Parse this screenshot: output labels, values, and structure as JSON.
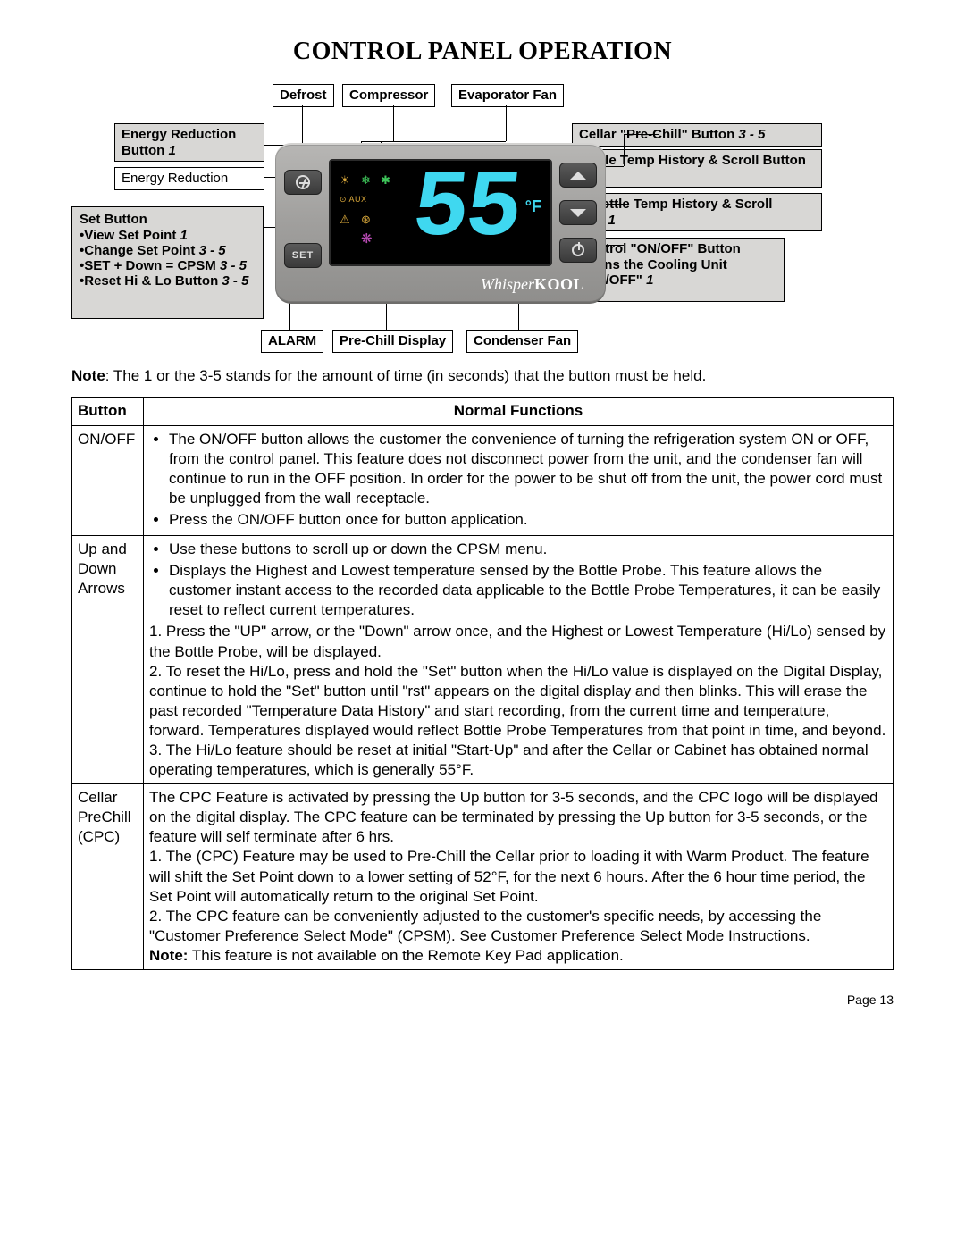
{
  "title": "CONTROL PANEL OPERATION",
  "page_number": "Page 13",
  "colors": {
    "digit": "#3fd8f0",
    "device_body_top": "#b7b6b4",
    "device_body_bot": "#8f8e8c",
    "label_gray": "#d8d7d5",
    "text": "#000000",
    "bg": "#ffffff"
  },
  "device": {
    "display_value": "55",
    "unit": "°F",
    "brand_prefix": "Whisper",
    "brand_suffix": "KOOL",
    "button_set_label": "SET",
    "icons": {
      "defrost": "☀",
      "compressor": "❄",
      "evap_fan": "✱",
      "aux": "⊙ AUX",
      "alarm": "⚠",
      "prechill": "⊛",
      "cond_fan": "❋"
    }
  },
  "labels": {
    "defrost": "Defrost",
    "compressor": "Compressor",
    "evaporator_fan": "Evaporator Fan",
    "energy_reduction_button_title": "Energy Reduction Button",
    "energy_reduction_button_time": "1",
    "energy_reduction": "Energy Reduction",
    "set_button_title": "Set Button",
    "set_items": [
      "•View Set Point  ",
      "•Change Set Point  ",
      "•SET + Down = CPSM  ",
      "•Reset Hi & Lo Button  "
    ],
    "set_times": [
      "1",
      "3 - 5",
      "3 - 5",
      "3 - 5"
    ],
    "alarm": "ALARM",
    "prechill_display": "Pre-Chill Display",
    "condenser_fan": "Condenser Fan",
    "cellar_prechill_title": "Cellar \"Pre-Chill\" Button",
    "cellar_prechill_time": "3 - 5",
    "hi_bottle_title": "Hi Bottle Temp History & Scroll Button",
    "hi_bottle_time": "1",
    "lo_bottle_title": "Low Bottle Temp History & Scroll Button",
    "lo_bottle_time": "1",
    "onoff_title": "Control \"ON/OFF\" Button",
    "onoff_sub": "•Turns the Cooling Unit \"ON/OFF\"",
    "onoff_time": "1"
  },
  "note_prefix": "Note",
  "note_text": ": The 1 or the 3-5 stands for the amount of time (in seconds) that the button must be held.",
  "table": {
    "header_button": "Button",
    "header_functions": "Normal Functions",
    "rows": [
      {
        "button": "ON/OFF",
        "html": "<ul><li>The ON/OFF button allows the customer the convenience of turning the refrigeration system ON or OFF, from the control panel.  This feature does not disconnect power from the unit, and the condenser fan will continue to run in the OFF position.  In order for the power to be shut off from the unit, the power cord must be unplugged from the wall receptacle.</li><li>Press the ON/OFF button once for button application.</li></ul>"
      },
      {
        "button": "Up and Down Arrows",
        "html": "<ul><li>Use these buttons to scroll up or down the CPSM menu.</li><li>Displays the Highest and Lowest temperature sensed by the Bottle Probe.  This feature allows the customer instant access to the recorded data applicable to the Bottle Probe Temperatures, it can be easily reset to reflect current temperatures.</li></ul>1.  Press the \"UP\" arrow, or the \"Down\" arrow once, and the Highest or Lowest Temperature (Hi/Lo) sensed by the Bottle Probe, will be displayed.<br>2.  To reset the Hi/Lo, press and hold the \"Set\" button when the Hi/Lo value is displayed on the Digital Display, continue to hold the \"Set\" button until \"rst\" appears on the digital display and then blinks.  This will erase the past recorded \"Temperature Data History\" and start recording, from the current time and temperature, forward.  Temperatures displayed would reflect Bottle Probe Temperatures from that point in time, and beyond.<br>3.  The Hi/Lo feature should be reset at initial \"Start-Up\" and after the Cellar or Cabinet has obtained normal operating temperatures, which is generally 55°F."
      },
      {
        "button": "Cellar PreChill (CPC)",
        "html": "The CPC Feature is activated by pressing the Up button for 3-5 seconds, and the CPC logo will be displayed on the digital display. The CPC feature can be terminated by pressing the Up button for 3-5 seconds, or the feature will self terminate after 6 hrs.<br>1.  The (CPC) Feature may be used to Pre-Chill the Cellar prior to loading it with Warm Product. The feature will shift the Set Point down to a lower setting of 52°F, for the next 6 hours.  After the 6 hour time period, the Set Point will automatically return to the original Set Point.<br>2.  The CPC feature can be conveniently adjusted to the customer's specific needs, by accessing the \"Customer Preference Select Mode\" (CPSM).  See Customer Preference Select Mode Instructions.<br><b>Note:</b> This feature is not available on the Remote Key Pad application."
      }
    ]
  }
}
